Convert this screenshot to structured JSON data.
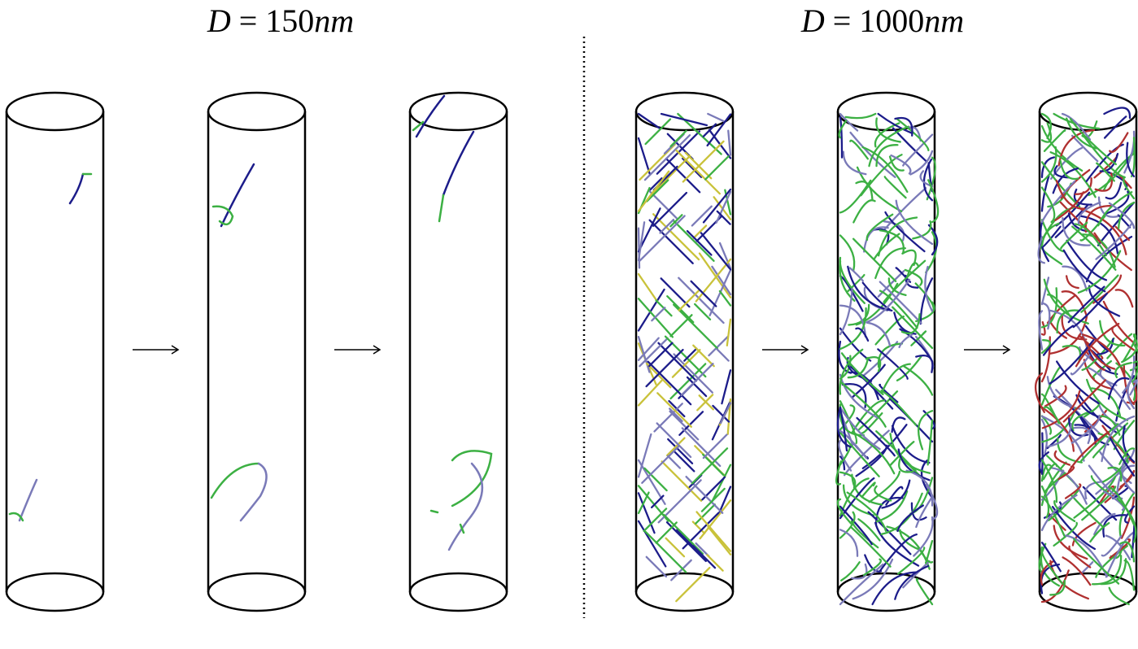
{
  "panels": [
    {
      "symbol": "D",
      "equals": "=",
      "value": "150",
      "unit": "nm"
    },
    {
      "symbol": "D",
      "equals": "=",
      "value": "1000",
      "unit": "nm"
    }
  ],
  "colors": {
    "outline": "#000000",
    "dislocation_green": "#3cb043",
    "dislocation_blue": "#1c1c8a",
    "dislocation_yellow": "#c9c23a",
    "dislocation_lavender": "#7a7ab8",
    "dislocation_red": "#b03030"
  },
  "sequence_arrow": "→"
}
